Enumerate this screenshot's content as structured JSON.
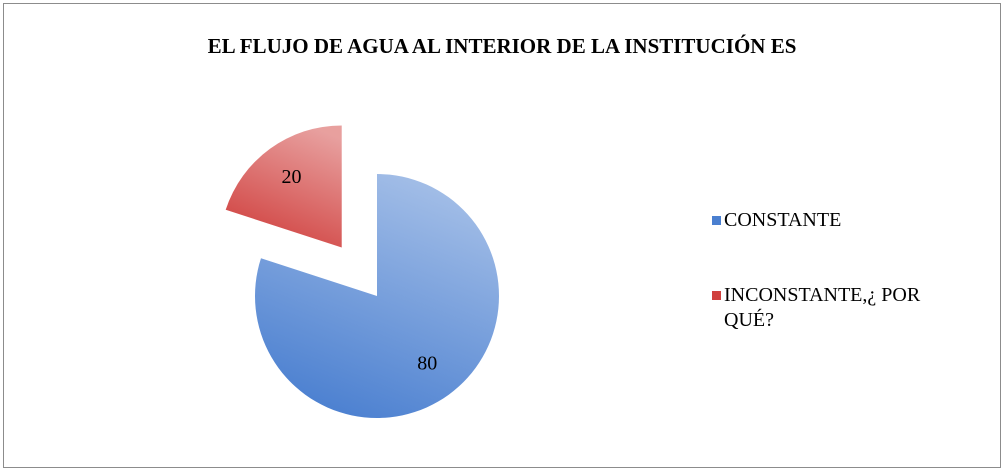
{
  "chart_data": {
    "type": "pie",
    "title": "EL FLUJO DE AGUA AL INTERIOR DE LA INSTITUCIÓN ES",
    "categories": [
      "CONSTANTE",
      "INCONSTANTE,¿ POR QUÉ?"
    ],
    "values": [
      80,
      20
    ],
    "colors": [
      "#4a7fd0",
      "#d0403e"
    ],
    "legend": "right"
  }
}
